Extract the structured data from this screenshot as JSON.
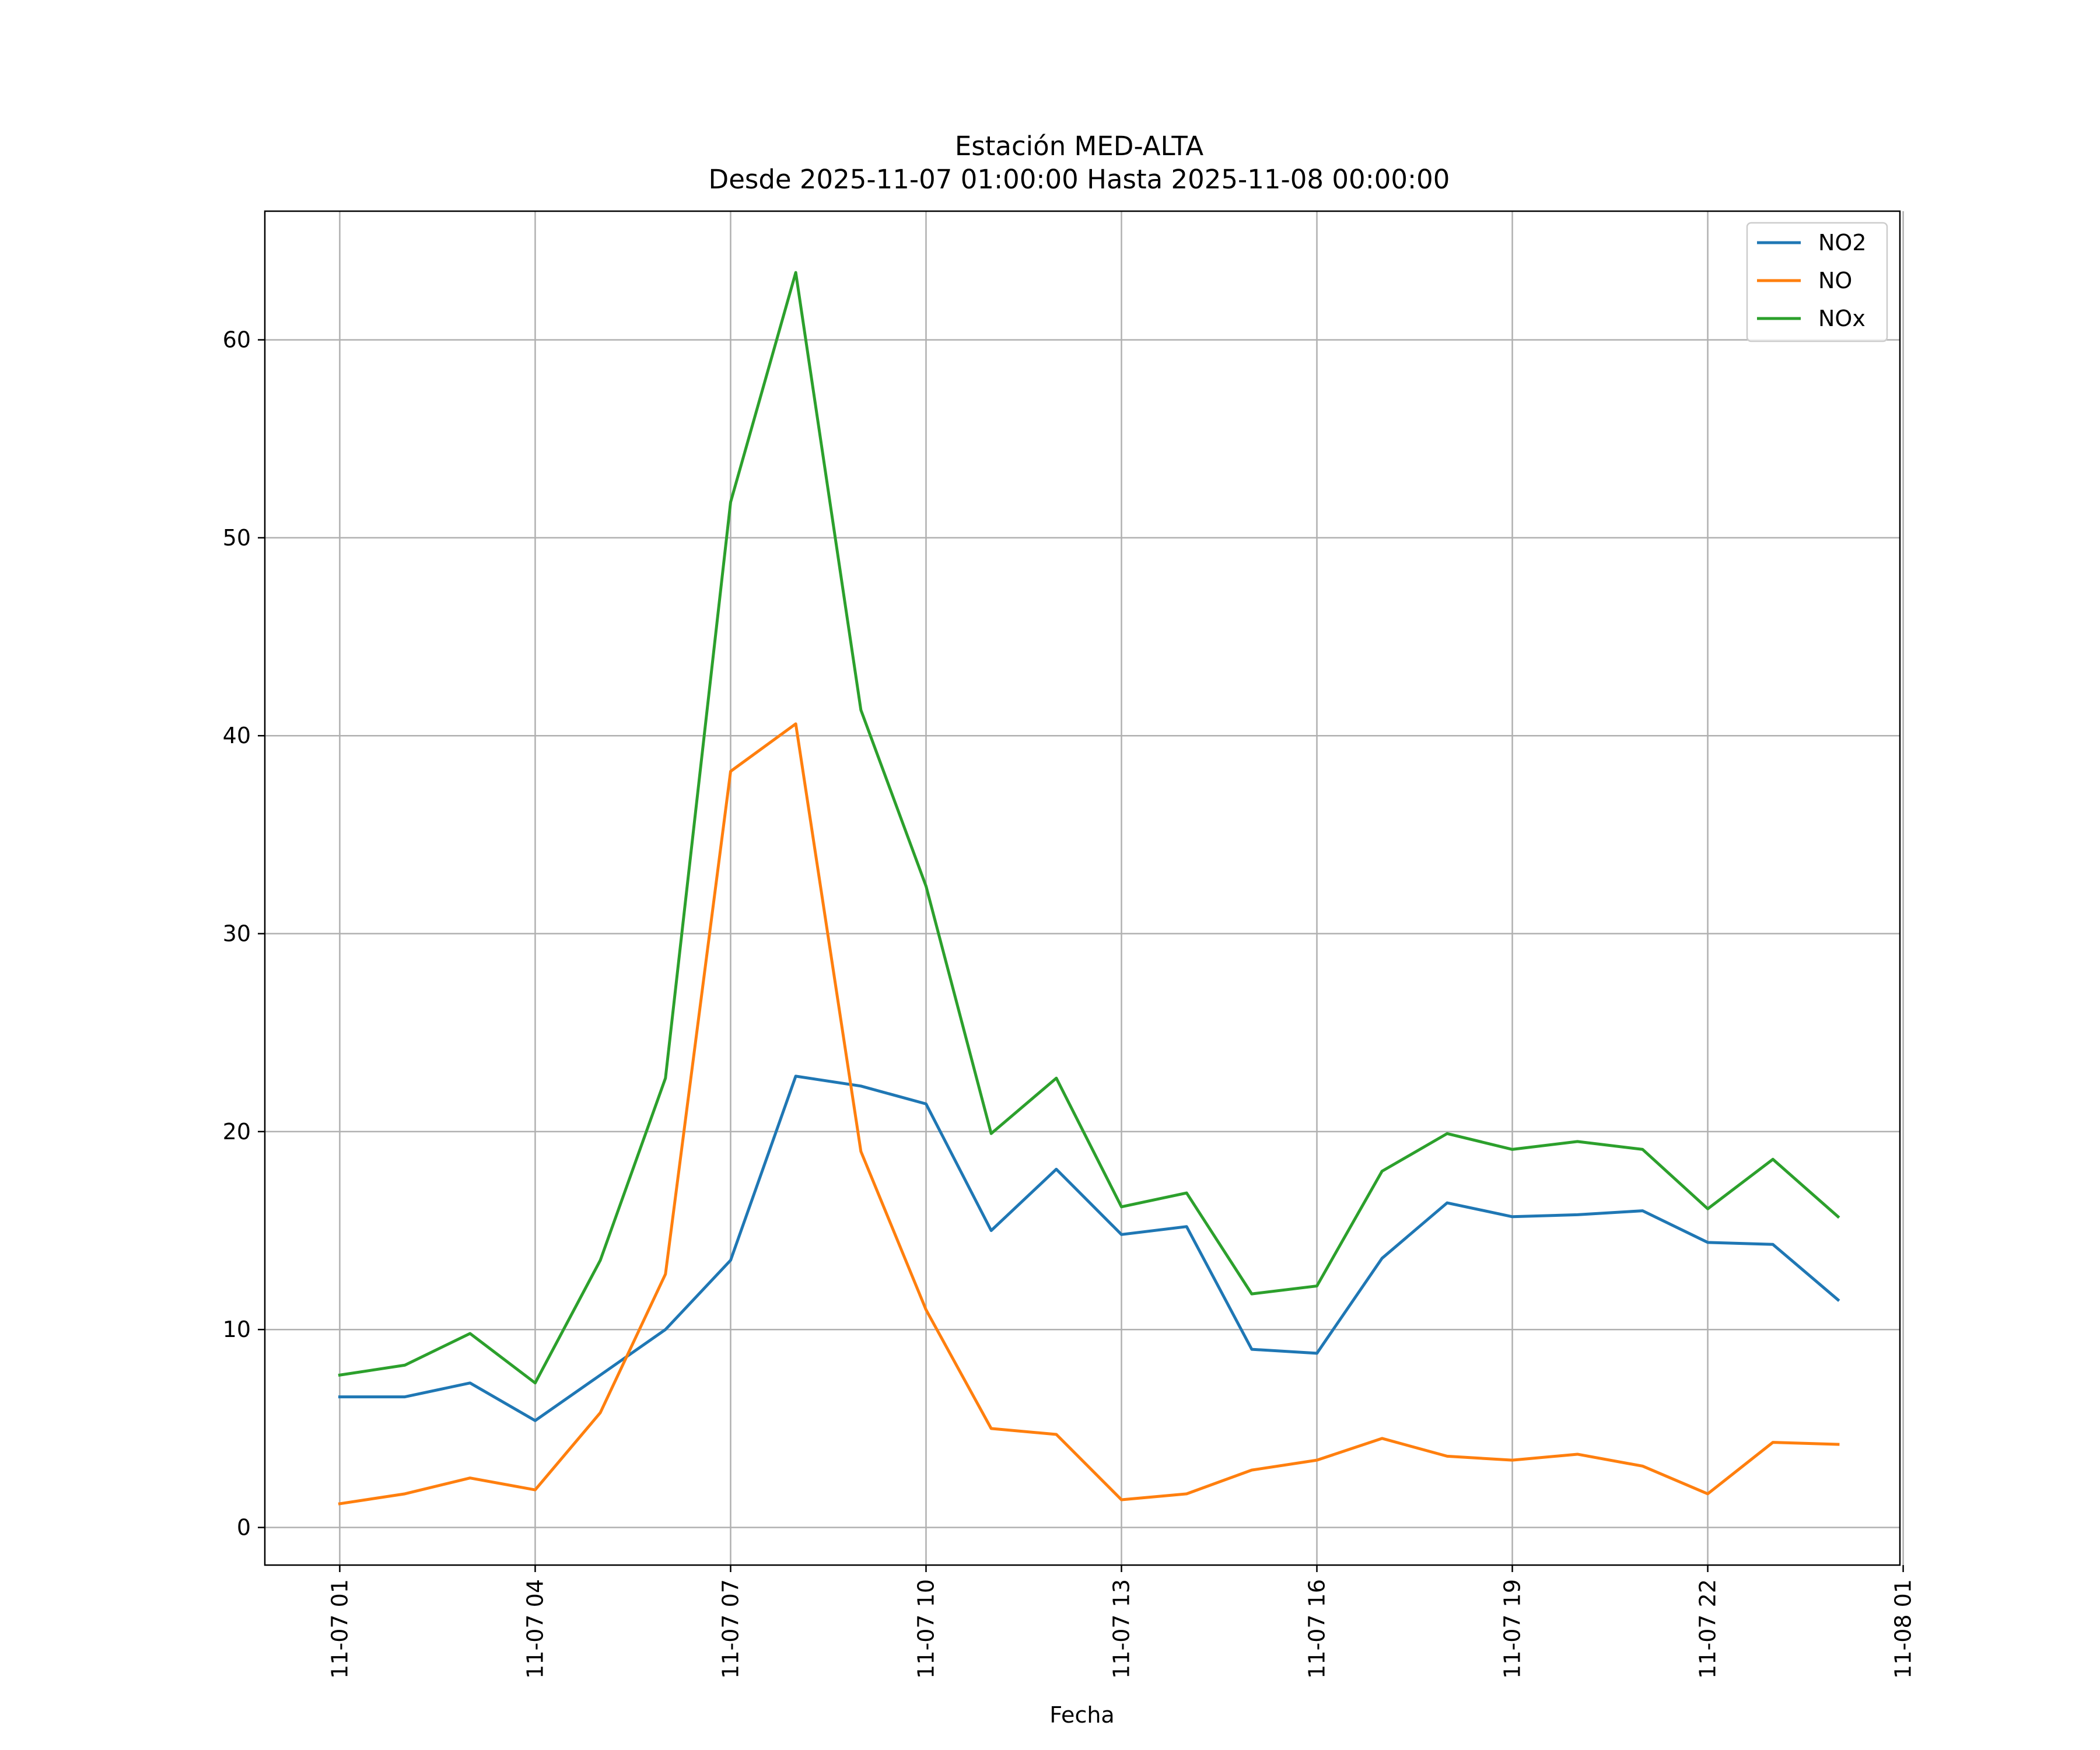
{
  "chart_data": {
    "type": "line",
    "title": "Estación MED-ALTA",
    "subtitle": "Desde 2025-11-07 01:00:00 Hasta 2025-11-08 00:00:00",
    "xlabel": "Fecha",
    "ylabel": "",
    "x_hours": [
      0,
      1,
      2,
      3,
      4,
      5,
      6,
      7,
      8,
      9,
      10,
      11,
      12,
      13,
      14,
      15,
      16,
      17,
      18,
      19,
      20,
      21,
      22,
      23
    ],
    "x_tick_hours": [
      0,
      3,
      6,
      9,
      12,
      15,
      18,
      21,
      24
    ],
    "x_tick_labels": [
      "11-07 01",
      "11-07 04",
      "11-07 07",
      "11-07 10",
      "11-07 13",
      "11-07 16",
      "11-07 19",
      "11-07 22",
      "11-08 01"
    ],
    "xlim": [
      -1.15,
      23.95
    ],
    "ylim": [
      -1.9,
      66.5
    ],
    "y_ticks": [
      0,
      10,
      20,
      30,
      40,
      50,
      60
    ],
    "y_tick_labels": [
      "0",
      "10",
      "20",
      "30",
      "40",
      "50",
      "60"
    ],
    "grid": true,
    "legend": "top-right",
    "series": [
      {
        "name": "NO2",
        "color": "#1f77b4",
        "values": [
          6.6,
          6.6,
          7.3,
          5.4,
          7.7,
          10.0,
          13.5,
          22.8,
          22.3,
          21.4,
          15.0,
          18.1,
          14.8,
          15.2,
          9.0,
          8.8,
          13.6,
          16.4,
          15.7,
          15.8,
          16.0,
          14.4,
          14.3,
          11.5
        ]
      },
      {
        "name": "NO",
        "color": "#ff7f0e",
        "values": [
          1.2,
          1.7,
          2.5,
          1.9,
          5.8,
          12.8,
          38.2,
          40.6,
          19.0,
          11.0,
          5.0,
          4.7,
          1.4,
          1.7,
          2.9,
          3.4,
          4.5,
          3.6,
          3.4,
          3.7,
          3.1,
          1.7,
          4.3,
          4.2
        ]
      },
      {
        "name": "NOx",
        "color": "#2ca02c",
        "values": [
          7.7,
          8.2,
          9.8,
          7.3,
          13.5,
          22.7,
          51.8,
          63.4,
          41.3,
          32.4,
          19.9,
          22.7,
          16.2,
          16.9,
          11.8,
          12.2,
          18.0,
          19.9,
          19.1,
          19.5,
          19.1,
          16.1,
          18.6,
          15.7
        ]
      }
    ]
  }
}
